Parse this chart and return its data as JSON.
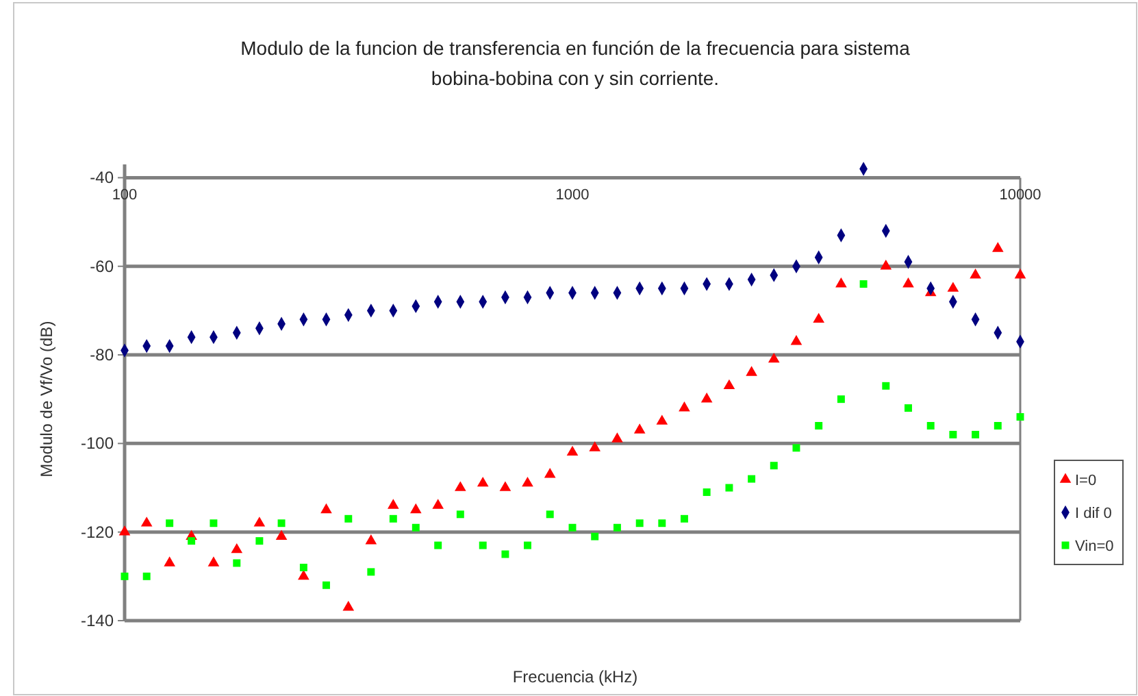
{
  "chart_data": {
    "type": "scatter",
    "title": "Modulo de la funcion de transferencia en función de la frecuencia para sistema\nbobina-bobina con y sin corriente.",
    "xlabel": "Frecuencia (kHz)",
    "ylabel": "Modulo de Vf/Vo (dB)",
    "x": [
      100,
      112,
      126,
      141,
      158,
      178,
      200,
      224,
      251,
      282,
      316,
      355,
      398,
      447,
      501,
      562,
      631,
      708,
      794,
      891,
      1000,
      1122,
      1259,
      1413,
      1585,
      1778,
      1995,
      2239,
      2512,
      2818,
      3162,
      3548,
      3981,
      4467,
      5012,
      5623,
      6310,
      7079,
      7943,
      8913,
      10000
    ],
    "series": [
      {
        "name": "I=0",
        "color": "#ff0000",
        "marker": "triangle",
        "values": [
          -120,
          -118,
          -127,
          -121,
          -127,
          -124,
          -118,
          -121,
          -130,
          -115,
          -137,
          -122,
          -114,
          -115,
          -114,
          -110,
          -109,
          -110,
          -109,
          -107,
          -102,
          -101,
          -99,
          -97,
          -95,
          -92,
          -90,
          -87,
          -84,
          -81,
          -77,
          -72,
          -64,
          null,
          -60,
          -64,
          -66,
          -65,
          -62,
          -56,
          -62
        ]
      },
      {
        "name": "I dif 0",
        "color": "#000080",
        "marker": "diamond",
        "values": [
          -79,
          -78,
          -78,
          -76,
          -76,
          -75,
          -74,
          -73,
          -72,
          -72,
          -71,
          -70,
          -70,
          -69,
          -68,
          -68,
          -68,
          -67,
          -67,
          -66,
          -66,
          -66,
          -66,
          -65,
          -65,
          -65,
          -64,
          -64,
          -63,
          -62,
          -60,
          -58,
          -53,
          -38,
          -52,
          -59,
          -65,
          -68,
          -72,
          -75,
          -77
        ]
      },
      {
        "name": "Vin=0",
        "color": "#00ff00",
        "marker": "square",
        "values": [
          -130,
          -130,
          -118,
          -122,
          -118,
          -127,
          -122,
          -118,
          -128,
          -132,
          -117,
          -129,
          -117,
          -119,
          -123,
          -116,
          -123,
          -125,
          -123,
          -116,
          -119,
          -121,
          -119,
          -118,
          -118,
          -117,
          -111,
          -110,
          -108,
          -105,
          -101,
          -96,
          -90,
          -64,
          -87,
          -92,
          -96,
          -98,
          -98,
          -96,
          -94
        ]
      }
    ],
    "log": "x",
    "xlim": [
      100,
      10000
    ],
    "xticks": [
      100,
      1000,
      10000
    ],
    "ylim": [
      -140,
      -37
    ],
    "yticks": [
      -40,
      -60,
      -80,
      -100,
      -120,
      -140
    ],
    "grid": "y",
    "legend": "right"
  }
}
